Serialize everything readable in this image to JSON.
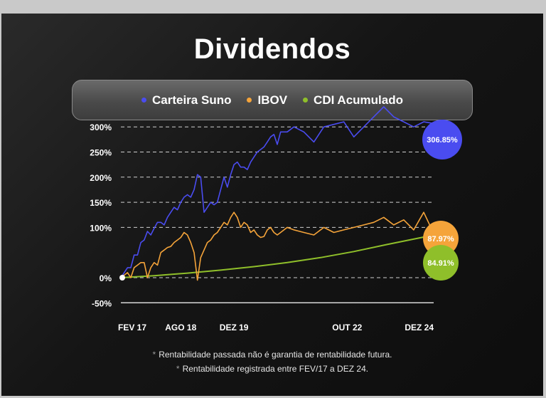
{
  "title": "Dividendos",
  "colors": {
    "suno": "#4a4cf0",
    "ibov": "#f5a43a",
    "cdi": "#8fbf2a"
  },
  "chart_data": {
    "type": "line",
    "title": "Dividendos",
    "xlabel": "",
    "ylabel": "",
    "x_ticks": [
      "FEV 17",
      "AGO 18",
      "DEZ 19",
      "OUT 22",
      "DEZ 24"
    ],
    "x_tick_positions": [
      0,
      18,
      34,
      68,
      94
    ],
    "y_ticks": [
      "300%",
      "250%",
      "200%",
      "150%",
      "100%",
      "0%",
      "-50%"
    ],
    "y_tick_values": [
      300,
      250,
      200,
      150,
      100,
      0,
      -50
    ],
    "ylim": [
      -50,
      320
    ],
    "xlim": [
      0,
      94
    ],
    "grid": true,
    "legend_position": "top",
    "series": [
      {
        "name": "Carteira Suno",
        "color": "#4a4cf0",
        "x": [
          0,
          1,
          2,
          3,
          4,
          5,
          6,
          7,
          8,
          9,
          10,
          11,
          12,
          13,
          14,
          15,
          16,
          17,
          18,
          19,
          20,
          21,
          22,
          23,
          24,
          25,
          26,
          27,
          28,
          29,
          30,
          31,
          32,
          33,
          34,
          35,
          36,
          37,
          38,
          39,
          40,
          41,
          42,
          43,
          44,
          45,
          46,
          47,
          48,
          50,
          52,
          55,
          58,
          61,
          64,
          67,
          70,
          73,
          76,
          79,
          82,
          85,
          88,
          91,
          94
        ],
        "values": [
          0,
          10,
          20,
          20,
          45,
          45,
          70,
          75,
          92,
          85,
          98,
          110,
          110,
          105,
          120,
          130,
          140,
          135,
          150,
          160,
          165,
          160,
          175,
          205,
          200,
          130,
          140,
          150,
          145,
          150,
          175,
          200,
          180,
          205,
          225,
          230,
          220,
          220,
          215,
          230,
          240,
          250,
          255,
          260,
          270,
          280,
          285,
          265,
          290,
          290,
          300,
          290,
          270,
          300,
          305,
          310,
          280,
          300,
          320,
          340,
          320,
          310,
          300,
          310,
          306.85
        ]
      },
      {
        "name": "IBOV",
        "color": "#f5a43a",
        "x": [
          0,
          1,
          2,
          3,
          4,
          5,
          6,
          7,
          8,
          9,
          10,
          11,
          12,
          13,
          14,
          15,
          16,
          17,
          18,
          19,
          20,
          21,
          22,
          23,
          24,
          25,
          26,
          27,
          28,
          29,
          30,
          31,
          32,
          33,
          34,
          35,
          36,
          37,
          38,
          39,
          40,
          41,
          42,
          43,
          44,
          45,
          46,
          47,
          48,
          50,
          52,
          55,
          58,
          61,
          64,
          67,
          70,
          73,
          76,
          79,
          82,
          85,
          88,
          91,
          94
        ],
        "values": [
          0,
          5,
          10,
          0,
          20,
          25,
          30,
          30,
          0,
          20,
          30,
          25,
          50,
          55,
          60,
          62,
          70,
          75,
          80,
          90,
          85,
          70,
          50,
          -5,
          40,
          55,
          70,
          75,
          85,
          90,
          100,
          110,
          105,
          120,
          130,
          120,
          100,
          110,
          105,
          90,
          95,
          85,
          80,
          82,
          95,
          100,
          90,
          85,
          90,
          100,
          95,
          90,
          85,
          100,
          90,
          95,
          100,
          105,
          110,
          120,
          105,
          115,
          95,
          130,
          87.97
        ]
      },
      {
        "name": "CDI Acumulado",
        "color": "#8fbf2a",
        "x": [
          0,
          10,
          20,
          30,
          40,
          50,
          60,
          70,
          80,
          94
        ],
        "values": [
          0,
          4,
          9,
          15,
          22,
          30,
          40,
          52,
          66,
          84.91
        ]
      }
    ],
    "end_labels": [
      "306.85%",
      "87.97%",
      "84.91%"
    ]
  },
  "footnotes": [
    "Rentabilidade passada não é garantia de rentabilidade futura.",
    "Rentabilidade registrada entre FEV/17 a DEZ 24."
  ],
  "footnote_marker": "*"
}
